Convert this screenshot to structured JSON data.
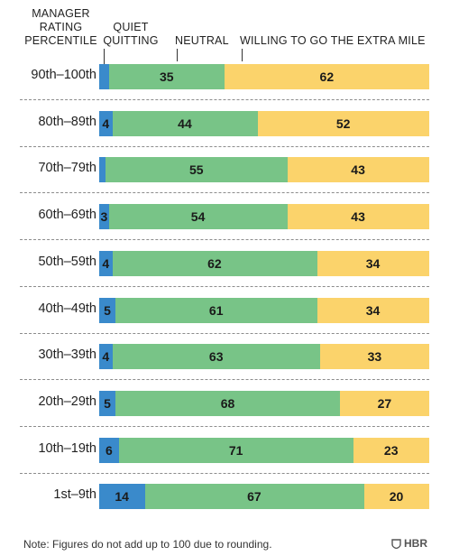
{
  "chart_data": {
    "type": "bar",
    "orientation": "horizontal",
    "stacked": true,
    "row_header": "MANAGER RATING PERCENTILE",
    "categories": [
      "90th–100th",
      "80th–89th",
      "70th–79th",
      "60th–69th",
      "50th–59th",
      "40th–49th",
      "30th–39th",
      "20th–29th",
      "10th–19th",
      "1st–9th"
    ],
    "series": [
      {
        "name": "QUIET QUITTING",
        "color": "#3a8acb",
        "values": [
          3,
          4,
          2,
          3,
          4,
          5,
          4,
          5,
          6,
          14
        ],
        "labels": [
          "3%",
          "4",
          "2",
          "3",
          "4",
          "5",
          "4",
          "5",
          "6",
          "14"
        ]
      },
      {
        "name": "NEUTRAL",
        "color": "#78c487",
        "values": [
          35,
          44,
          55,
          54,
          62,
          61,
          63,
          68,
          71,
          67
        ],
        "labels": [
          "35",
          "44",
          "55",
          "54",
          "62",
          "61",
          "63",
          "68",
          "71",
          "67"
        ]
      },
      {
        "name": "WILLING TO GO THE EXTRA MILE",
        "color": "#fbd36b",
        "values": [
          62,
          52,
          43,
          43,
          34,
          34,
          33,
          27,
          23,
          20
        ],
        "labels": [
          "62",
          "52",
          "43",
          "43",
          "34",
          "34",
          "33",
          "27",
          "23",
          "20"
        ]
      }
    ],
    "xlim": [
      0,
      100
    ]
  },
  "header": {
    "rating_line1": "MANAGER",
    "rating_line2": "RATING",
    "rating_line3": "PERCENTILE",
    "quiet_line1": "QUIET",
    "quiet_line2": "QUITTING",
    "neutral": "NEUTRAL",
    "willing": "WILLING TO GO THE EXTRA MILE"
  },
  "footer": {
    "note": "Note: Figures do not add up to 100 due to rounding.",
    "brand": "HBR"
  }
}
